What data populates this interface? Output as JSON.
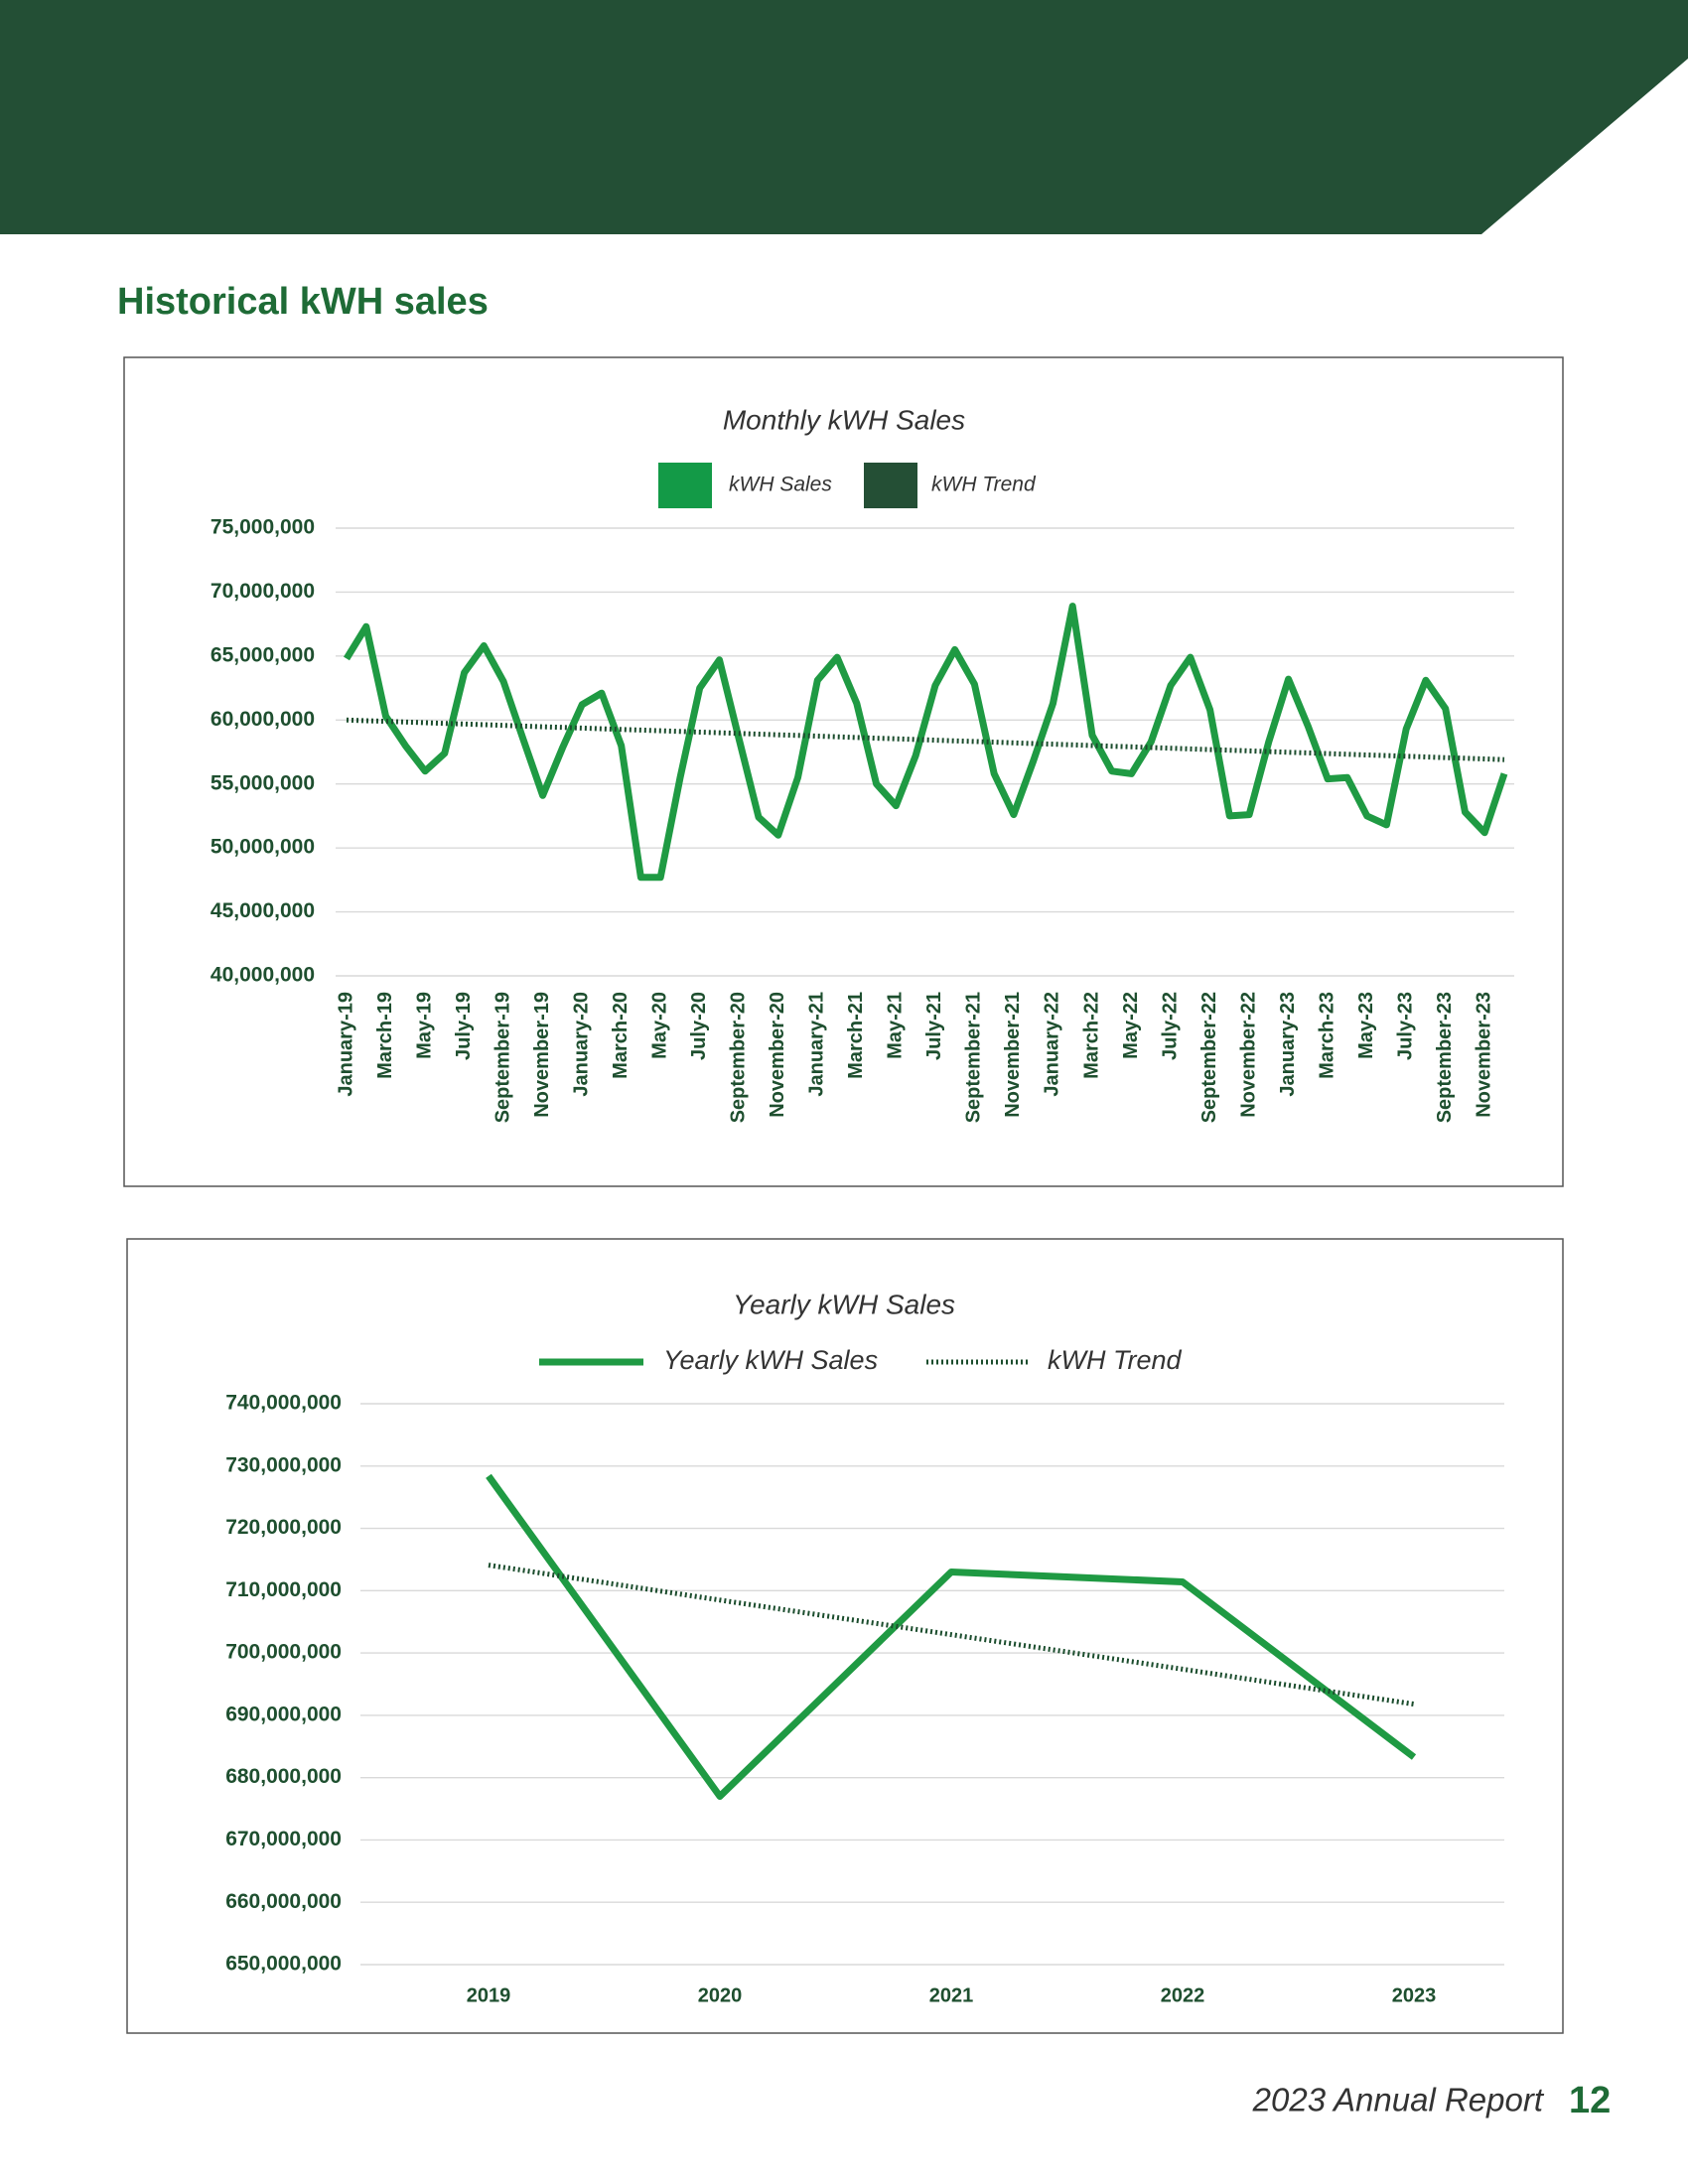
{
  "heading": "Historical kWH sales",
  "footer": {
    "report": "2023 Annual Report",
    "page": "12"
  },
  "chart_data": [
    {
      "type": "line",
      "title": "Monthly kWH Sales",
      "legend": "top",
      "legend_marker": "square",
      "grid": true,
      "categories": [
        "January-19",
        null,
        "March-19",
        null,
        "May-19",
        null,
        "July-19",
        null,
        "September-19",
        null,
        "November-19",
        null,
        "January-20",
        null,
        "March-20",
        null,
        "May-20",
        null,
        "July-20",
        null,
        "September-20",
        null,
        "November-20",
        null,
        "January-21",
        null,
        "March-21",
        null,
        "May-21",
        null,
        "July-21",
        null,
        "September-21",
        null,
        "November-21",
        null,
        "January-22",
        null,
        "March-22",
        null,
        "May-22",
        null,
        "July-22",
        null,
        "September-22",
        null,
        "November-22",
        null,
        "January-23",
        null,
        "March-23",
        null,
        "May-23",
        null,
        "July-23",
        null,
        "September-23",
        null,
        "November-23",
        null
      ],
      "series": [
        {
          "name": "kWH Sales",
          "color": "#1f9a43",
          "legend_color": "#139a47",
          "line_style": "solid",
          "values": [
            64800000,
            67300000,
            60300000,
            58000000,
            56000000,
            57400000,
            63700000,
            65800000,
            63000000,
            58500000,
            54100000,
            57800000,
            61200000,
            62100000,
            58000000,
            47700000,
            47700000,
            55500000,
            62500000,
            64700000,
            58500000,
            52400000,
            51000000,
            55500000,
            63100000,
            64900000,
            61300000,
            55000000,
            53300000,
            57200000,
            62700000,
            65500000,
            62800000,
            55800000,
            52600000,
            56800000,
            61300000,
            68900000,
            58800000,
            56000000,
            55800000,
            58300000,
            62700000,
            64900000,
            60800000,
            52500000,
            52600000,
            58300000,
            63200000,
            59500000,
            55400000,
            55500000,
            52500000,
            51800000,
            59300000,
            63100000,
            60900000,
            52800000,
            51200000,
            55800000
          ]
        },
        {
          "name": "kWH Trend",
          "color": "#1b4d2d",
          "legend_color": "#244f35",
          "line_style": "dotted",
          "values": [
            60000000,
            59947500,
            59895000,
            59842500,
            59790000,
            59737500,
            59685000,
            59632500,
            59580000,
            59527500,
            59475000,
            59422500,
            59370000,
            59317500,
            59265000,
            59212500,
            59160000,
            59107500,
            59055000,
            59002500,
            58950000,
            58897500,
            58845000,
            58792500,
            58740000,
            58687500,
            58635000,
            58582500,
            58530000,
            58477500,
            58425000,
            58372500,
            58320000,
            58267500,
            58215000,
            58162500,
            58110000,
            58057500,
            58005000,
            57952500,
            57900000,
            57847500,
            57795000,
            57742500,
            57690000,
            57637500,
            57585000,
            57532500,
            57480000,
            57427500,
            57375000,
            57322500,
            57270000,
            57217500,
            57165000,
            57112500,
            57060000,
            57007500,
            56955000,
            56902500
          ]
        }
      ],
      "ylim": [
        40000000,
        75000000
      ],
      "yticks": [
        {
          "value": 40000000,
          "label": "40,000,000"
        },
        {
          "value": 45000000,
          "label": "45,000,000"
        },
        {
          "value": 50000000,
          "label": "50,000,000"
        },
        {
          "value": 55000000,
          "label": "55,000,000"
        },
        {
          "value": 60000000,
          "label": "60,000,000"
        },
        {
          "value": 65000000,
          "label": "65,000,000"
        },
        {
          "value": 70000000,
          "label": "70,000,000"
        },
        {
          "value": 75000000,
          "label": "75,000,000"
        }
      ]
    },
    {
      "type": "line",
      "title": "Yearly kWH Sales",
      "legend": "top",
      "legend_marker": "line",
      "grid": true,
      "categories": [
        "2019",
        "2020",
        "2021",
        "2022",
        "2023"
      ],
      "series": [
        {
          "name": "Yearly kWH Sales",
          "color": "#1f9a43",
          "line_style": "solid",
          "values": [
            728400000,
            677000000,
            713000000,
            711400000,
            683300000
          ]
        },
        {
          "name": "kWH Trend",
          "color": "#1b4d2d",
          "line_style": "dotted",
          "values": [
            714100000,
            708500000,
            702950000,
            697400000,
            691800000
          ]
        }
      ],
      "ylim": [
        650000000,
        740000000
      ],
      "yticks": [
        {
          "value": 650000000,
          "label": "650,000,000"
        },
        {
          "value": 660000000,
          "label": "660,000,000"
        },
        {
          "value": 670000000,
          "label": "670,000,000"
        },
        {
          "value": 680000000,
          "label": "680,000,000"
        },
        {
          "value": 690000000,
          "label": "690,000,000"
        },
        {
          "value": 700000000,
          "label": "700,000,000"
        },
        {
          "value": 710000000,
          "label": "710,000,000"
        },
        {
          "value": 720000000,
          "label": "720,000,000"
        },
        {
          "value": 730000000,
          "label": "730,000,000"
        },
        {
          "value": 740000000,
          "label": "740,000,000"
        }
      ]
    }
  ]
}
